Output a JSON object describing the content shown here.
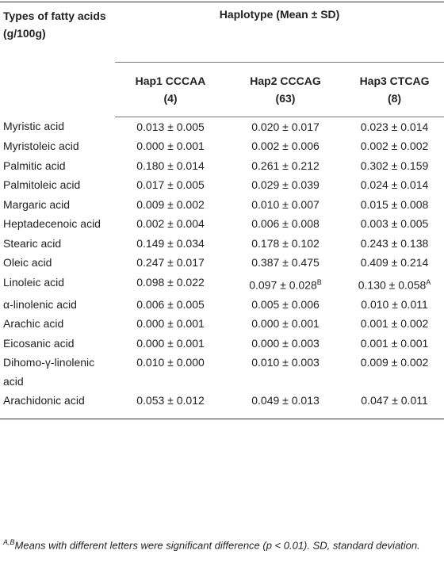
{
  "table": {
    "corner_header": "Types of fatty acids (g/100g)",
    "group_header": "Haplotype (Mean ± SD)",
    "columns": [
      {
        "name": "Hap1 CCCAA",
        "n": "(4)"
      },
      {
        "name": "Hap2 CCCAG",
        "n": "(63)"
      },
      {
        "name": "Hap3 CTCAG",
        "n": "(8)"
      }
    ],
    "rows": [
      {
        "label": "Myristic acid",
        "cells": [
          {
            "text": "0.013 ± 0.005"
          },
          {
            "text": "0.020 ± 0.017"
          },
          {
            "text": "0.023 ± 0.014"
          }
        ]
      },
      {
        "label": "Myristoleic acid",
        "cells": [
          {
            "text": "0.000 ± 0.001"
          },
          {
            "text": "0.002 ± 0.006"
          },
          {
            "text": "0.002 ± 0.002"
          }
        ]
      },
      {
        "label": "Palmitic acid",
        "cells": [
          {
            "text": "0.180 ± 0.014"
          },
          {
            "text": "0.261 ± 0.212"
          },
          {
            "text": "0.302 ± 0.159"
          }
        ]
      },
      {
        "label": "Palmitoleic acid",
        "cells": [
          {
            "text": "0.017 ± 0.005"
          },
          {
            "text": "0.029 ± 0.039"
          },
          {
            "text": "0.024 ± 0.014"
          }
        ]
      },
      {
        "label": "Margaric acid",
        "cells": [
          {
            "text": "0.009 ± 0.002"
          },
          {
            "text": "0.010 ± 0.007"
          },
          {
            "text": "0.015 ± 0.008"
          }
        ]
      },
      {
        "label": "Heptadecenoic acid",
        "cells": [
          {
            "text": "0.002 ± 0.004"
          },
          {
            "text": "0.006 ± 0.008"
          },
          {
            "text": "0.003 ± 0.005"
          }
        ]
      },
      {
        "label": "Stearic acid",
        "cells": [
          {
            "text": "0.149 ± 0.034"
          },
          {
            "text": "0.178 ± 0.102"
          },
          {
            "text": "0.243 ± 0.138"
          }
        ]
      },
      {
        "label": "Oleic acid",
        "cells": [
          {
            "text": "0.247 ± 0.017"
          },
          {
            "text": "0.387 ± 0.475"
          },
          {
            "text": "0.409 ± 0.214"
          }
        ]
      },
      {
        "label": "Linoleic acid",
        "cells": [
          {
            "text": "0.098 ± 0.022"
          },
          {
            "text": "0.097 ± 0.028",
            "sup": "B"
          },
          {
            "text": "0.130 ± 0.058",
            "sup": "A"
          }
        ]
      },
      {
        "label": "α-linolenic acid",
        "cells": [
          {
            "text": "0.006 ± 0.005"
          },
          {
            "text": "0.005 ± 0.006"
          },
          {
            "text": "0.010 ± 0.011"
          }
        ]
      },
      {
        "label": "Arachic acid",
        "cells": [
          {
            "text": "0.000 ± 0.001"
          },
          {
            "text": "0.000 ± 0.001"
          },
          {
            "text": "0.001 ± 0.002"
          }
        ]
      },
      {
        "label": "Eicosanic acid",
        "cells": [
          {
            "text": "0.000 ± 0.001"
          },
          {
            "text": "0.000 ± 0.003"
          },
          {
            "text": "0.001 ± 0.001"
          }
        ]
      },
      {
        "label": "Dihomo-γ-linolenic acid",
        "cells": [
          {
            "text": "0.010 ± 0.000"
          },
          {
            "text": "0.010 ± 0.003"
          },
          {
            "text": "0.009 ± 0.002"
          }
        ]
      },
      {
        "label": "Arachidonic acid",
        "cells": [
          {
            "text": "0.053 ± 0.012"
          },
          {
            "text": "0.049 ± 0.013"
          },
          {
            "text": "0.047 ± 0.011"
          }
        ]
      }
    ]
  },
  "footnote": {
    "sup": "A,B",
    "text": "Means with different letters were significant difference (p < 0.01). SD, standard deviation."
  }
}
